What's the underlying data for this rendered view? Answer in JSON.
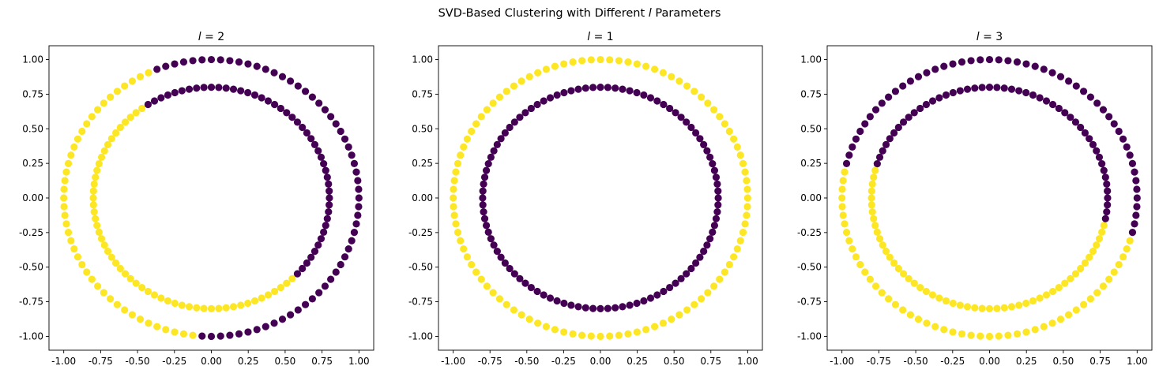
{
  "figure": {
    "title_prefix": "SVD-Based Clustering with Different ",
    "title_symbol": "l",
    "title_suffix": " Parameters"
  },
  "colors": {
    "cluster_0": "#440154",
    "cluster_1": "#fde725"
  },
  "chart_data": [
    {
      "type": "scatter",
      "title_symbol": "l",
      "title_value": " = 2",
      "xlim": [
        -1.1,
        1.1
      ],
      "ylim": [
        -1.1,
        1.1
      ],
      "xticks": [
        "-1.00",
        "-0.75",
        "-0.50",
        "-0.25",
        "0.00",
        "0.25",
        "0.50",
        "0.75",
        "1.00"
      ],
      "yticks": [
        "-1.00",
        "-0.75",
        "-0.50",
        "-0.25",
        "0.00",
        "0.25",
        "0.50",
        "0.75",
        "1.00"
      ],
      "grid": false,
      "series": [
        {
          "ring_radius": 1.0,
          "points": 100,
          "cluster_1_angle_range_deg": [
            115,
            266
          ]
        },
        {
          "ring_radius": 0.8,
          "points": 100,
          "cluster_1_angle_range_deg": [
            123,
            316
          ]
        }
      ]
    },
    {
      "type": "scatter",
      "title_symbol": "l",
      "title_value": " = 1",
      "xlim": [
        -1.1,
        1.1
      ],
      "ylim": [
        -1.1,
        1.1
      ],
      "xticks": [
        "-1.00",
        "-0.75",
        "-0.50",
        "-0.25",
        "0.00",
        "0.25",
        "0.50",
        "0.75",
        "1.00"
      ],
      "yticks": [
        "-1.00",
        "-0.75",
        "-0.50",
        "-0.25",
        "0.00",
        "0.25",
        "0.50",
        "0.75",
        "1.00"
      ],
      "grid": false,
      "series": [
        {
          "ring_radius": 1.0,
          "points": 100,
          "cluster_1_angle_range_deg": [
            0,
            360
          ]
        },
        {
          "ring_radius": 0.8,
          "points": 100,
          "cluster_1_angle_range_deg": []
        }
      ]
    },
    {
      "type": "scatter",
      "title_symbol": "l",
      "title_value": " = 3",
      "xlim": [
        -1.1,
        1.1
      ],
      "ylim": [
        -1.1,
        1.1
      ],
      "xticks": [
        "-1.00",
        "-0.75",
        "-0.50",
        "-0.25",
        "0.00",
        "0.25",
        "0.50",
        "0.75",
        "1.00"
      ],
      "yticks": [
        "-1.00",
        "-0.75",
        "-0.50",
        "-0.25",
        "0.00",
        "0.25",
        "0.50",
        "0.75",
        "1.00"
      ],
      "grid": false,
      "series": [
        {
          "ring_radius": 1.0,
          "points": 100,
          "cluster_1_angle_range_deg": [
            168,
            343
          ]
        },
        {
          "ring_radius": 0.8,
          "points": 100,
          "cluster_1_angle_range_deg": [
            164,
            348
          ]
        }
      ]
    }
  ]
}
